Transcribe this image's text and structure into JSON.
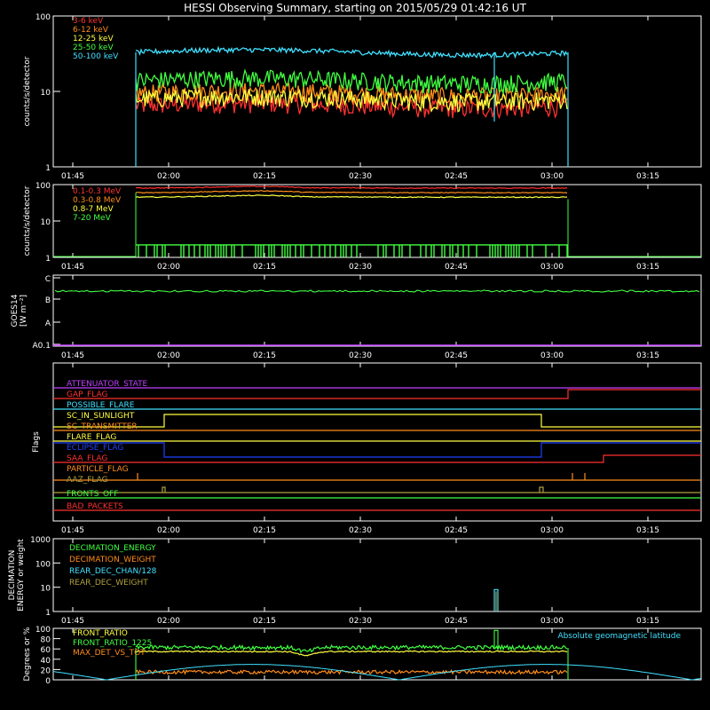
{
  "title": "HESSI Observing Summary, starting on 2015/05/29 01:42:16 UT",
  "time_ticks": [
    "01:45",
    "02:00",
    "02:15",
    "02:30",
    "02:45",
    "03:00",
    "03:15"
  ],
  "panels": {
    "lc": {
      "ylabel": "counts/s/detector",
      "yticks": [
        "100",
        "10",
        "1"
      ],
      "legend": [
        {
          "label": "3-6 keV",
          "color": "#ff3030"
        },
        {
          "label": "6-12 keV",
          "color": "#ff8c1a"
        },
        {
          "label": "12-25 keV",
          "color": "#ffff40"
        },
        {
          "label": "25-50 keV",
          "color": "#40ff40"
        },
        {
          "label": "50-100 keV",
          "color": "#40e0ff"
        }
      ]
    },
    "hlc": {
      "ylabel": "counts/s/detector",
      "yticks": [
        "100",
        "10",
        "1"
      ],
      "legend": [
        {
          "label": "0.1-0.3 MeV",
          "color": "#ff3030"
        },
        {
          "label": "0.3-0.8 MeV",
          "color": "#ff8c1a"
        },
        {
          "label": "0.8-7 MeV",
          "color": "#ffff40"
        },
        {
          "label": "7-20 MeV",
          "color": "#40ff40"
        }
      ]
    },
    "goes": {
      "ylabel_1": "GOES14",
      "ylabel_2": "[W m⁻²]",
      "yticks": [
        "C",
        "B",
        "A",
        "A0.1"
      ]
    },
    "flags": {
      "ylabel": "Flags",
      "items": [
        {
          "label": "ATTENUATOR_STATE",
          "color": "#c040ff"
        },
        {
          "label": "GAP_FLAG",
          "color": "#ff3030"
        },
        {
          "label": "POSSIBLE_FLARE",
          "color": "#40e0ff"
        },
        {
          "label": "SC_IN_SUNLIGHT",
          "color": "#ffff40"
        },
        {
          "label": "SC_TRANSMITTER",
          "color": "#ff8c1a"
        },
        {
          "label": "FLARE_FLAG",
          "color": "#ffff40"
        },
        {
          "label": "ECLIPSE_FLAG",
          "color": "#2040ff"
        },
        {
          "label": "SAA_FLAG",
          "color": "#ff3030"
        },
        {
          "label": "PARTICLE_FLAG",
          "color": "#ff8c1a"
        },
        {
          "label": "AAZ_FLAG",
          "color": "#b0a040"
        },
        {
          "label": "FRONTS_OFF",
          "color": "#40ff40"
        },
        {
          "label": "BAD_PACKETS",
          "color": "#ff3030"
        }
      ]
    },
    "dec": {
      "ylabel_1": "DECIMATION",
      "ylabel_2": "ENERGY or weight",
      "yticks": [
        "1000",
        "100",
        "10",
        "1"
      ],
      "legend": [
        {
          "label": "DECIMATION_ENERGY",
          "color": "#40ff40"
        },
        {
          "label": "DECIMATION_WEIGHT",
          "color": "#ff8c1a"
        },
        {
          "label": "REAR_DEC_CHAN/128",
          "color": "#40e0ff"
        },
        {
          "label": "REAR_DEC_WEIGHT",
          "color": "#b0a040"
        }
      ]
    },
    "ratio": {
      "ylabel": "Degrees or %",
      "yticks": [
        "100",
        "80",
        "60",
        "40",
        "20",
        "0"
      ],
      "legend": [
        {
          "label": "FRONT_RATIO",
          "color": "#ffff40"
        },
        {
          "label": "FRONT_RATIO_1225",
          "color": "#40ff40"
        },
        {
          "label": "MAX_DET_VS_TOT",
          "color": "#ff8c1a"
        }
      ],
      "legend_right": {
        "label": "Absolute geomagnetic latitude",
        "color": "#40e0ff"
      }
    }
  },
  "chart_data": [
    {
      "type": "line",
      "panel": "lc",
      "x_unit": "UT (minutes from 01:42:16)",
      "xlim": [
        0,
        98
      ],
      "ylim": [
        1,
        100
      ],
      "yscale": "log",
      "observation_window_ut": [
        "01:57",
        "03:03"
      ],
      "series": [
        {
          "name": "3-6 keV",
          "level": 6.5
        },
        {
          "name": "6-12 keV",
          "level": 9.5
        },
        {
          "name": "12-25 keV",
          "level": 8
        },
        {
          "name": "25-50 keV",
          "level": 14
        },
        {
          "name": "50-100 keV",
          "level": 33
        }
      ]
    },
    {
      "type": "line",
      "panel": "hlc",
      "ylim": [
        1,
        100
      ],
      "yscale": "log",
      "series": [
        {
          "name": "0.1-0.3 MeV",
          "level": 80
        },
        {
          "name": "0.3-0.8 MeV",
          "level": 60
        },
        {
          "name": "0.8-7 MeV",
          "level": 45
        },
        {
          "name": "7-20 MeV",
          "level": 1.5
        }
      ]
    },
    {
      "type": "line",
      "panel": "goes",
      "series": [
        {
          "name": "GOES14",
          "level": "B"
        }
      ]
    },
    {
      "type": "line",
      "panel": "ratio",
      "ylim": [
        0,
        100
      ],
      "series": [
        {
          "name": "FRONT_RATIO",
          "level": 55
        },
        {
          "name": "FRONT_RATIO_1225",
          "level": 63
        },
        {
          "name": "MAX_DET_VS_TOT",
          "level": 15
        },
        {
          "name": "Absolute geomagnetic latitude",
          "min": 0,
          "max": 30
        }
      ]
    }
  ]
}
